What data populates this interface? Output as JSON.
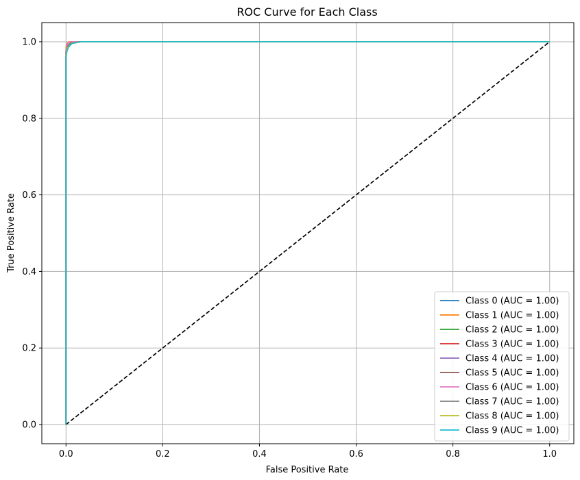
{
  "chart_data": {
    "type": "line",
    "title": "ROC Curve for Each Class",
    "xlabel": "False Positive Rate",
    "ylabel": "True Positive Rate",
    "xlim": [
      -0.05,
      1.05
    ],
    "ylim": [
      -0.05,
      1.05
    ],
    "xticks": [
      "0.0",
      "0.2",
      "0.4",
      "0.6",
      "0.8",
      "1.0"
    ],
    "yticks": [
      "0.0",
      "0.2",
      "0.4",
      "0.6",
      "0.8",
      "1.0"
    ],
    "grid": true,
    "legend_position": "lower right",
    "series": [
      {
        "name": "Class 0 (AUC = 1.00)",
        "color": "#1f77b4",
        "x": [
          0,
          0,
          0.003,
          0.01,
          0.03,
          1
        ],
        "y": [
          0,
          0.975,
          0.99,
          0.997,
          1,
          1
        ]
      },
      {
        "name": "Class 1 (AUC = 1.00)",
        "color": "#ff7f0e",
        "x": [
          0,
          0,
          0.002,
          0.006,
          1
        ],
        "y": [
          0,
          0.985,
          0.996,
          1,
          1
        ]
      },
      {
        "name": "Class 2 (AUC = 1.00)",
        "color": "#2ca02c",
        "x": [
          0,
          0,
          0.003,
          0.01,
          0.025,
          1
        ],
        "y": [
          0,
          0.975,
          0.99,
          0.997,
          1,
          1
        ]
      },
      {
        "name": "Class 3 (AUC = 1.00)",
        "color": "#d62728",
        "x": [
          0,
          0,
          0.003,
          0.012,
          0.03,
          1
        ],
        "y": [
          0,
          0.97,
          0.988,
          0.997,
          1,
          1
        ]
      },
      {
        "name": "Class 4 (AUC = 1.00)",
        "color": "#9467bd",
        "x": [
          0,
          0,
          0.003,
          0.01,
          0.025,
          1
        ],
        "y": [
          0,
          0.975,
          0.99,
          0.997,
          1,
          1
        ]
      },
      {
        "name": "Class 5 (AUC = 1.00)",
        "color": "#8c564b",
        "x": [
          0,
          0,
          0.003,
          0.01,
          0.03,
          1
        ],
        "y": [
          0,
          0.97,
          0.988,
          0.997,
          1,
          1
        ]
      },
      {
        "name": "Class 6 (AUC = 1.00)",
        "color": "#e377c2",
        "x": [
          0,
          0,
          0.002,
          0.008,
          1
        ],
        "y": [
          0,
          0.98,
          0.994,
          1,
          1
        ]
      },
      {
        "name": "Class 7 (AUC = 1.00)",
        "color": "#7f7f7f",
        "x": [
          0,
          0,
          0.003,
          0.012,
          0.03,
          1
        ],
        "y": [
          0,
          0.97,
          0.988,
          0.997,
          1,
          1
        ]
      },
      {
        "name": "Class 8 (AUC = 1.00)",
        "color": "#bcbd22",
        "x": [
          0,
          0,
          0.003,
          0.012,
          0.035,
          1
        ],
        "y": [
          0,
          0.965,
          0.985,
          0.996,
          1,
          1
        ]
      },
      {
        "name": "Class 9 (AUC = 1.00)",
        "color": "#17becf",
        "x": [
          0,
          0,
          0.002,
          0.005,
          0.012,
          0.03,
          1
        ],
        "y": [
          0,
          0.96,
          0.975,
          0.985,
          0.995,
          1,
          1
        ]
      }
    ],
    "reference_line": {
      "color": "#000000",
      "style": "dashed",
      "x": [
        0,
        1
      ],
      "y": [
        0,
        1
      ]
    }
  }
}
